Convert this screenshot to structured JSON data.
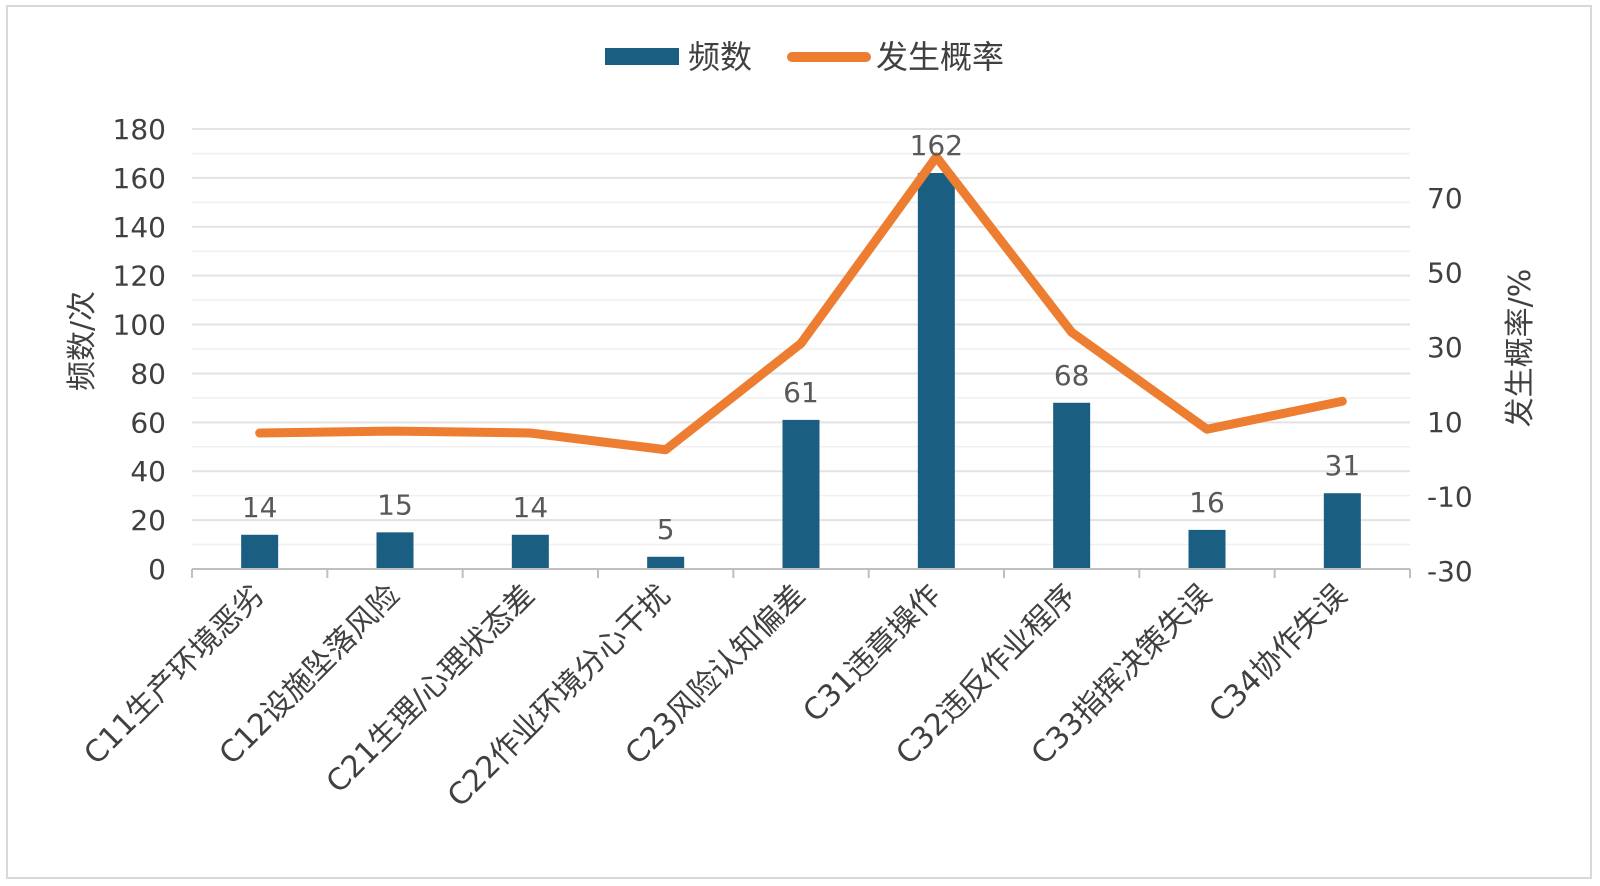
{
  "chart_data": {
    "type": "bar",
    "categories": [
      "C11生产环境恶劣",
      "C12设施坠落风险",
      "C21生理/心理状态差",
      "C22作业环境分心干扰",
      "C23风险认知偏差",
      "C31违章操作",
      "C32违反作业程序",
      "C33指挥决策失误",
      "C34协作失误"
    ],
    "series": [
      {
        "name": "频数",
        "type": "bar",
        "axis": "left",
        "color": "#1a5e82",
        "values": [
          14,
          15,
          14,
          5,
          61,
          162,
          68,
          16,
          31
        ]
      },
      {
        "name": "发生概率",
        "type": "line",
        "axis": "right",
        "color": "#ed7d31",
        "values": [
          7,
          7.5,
          7,
          2.5,
          31,
          81,
          34,
          8,
          15.5
        ]
      }
    ],
    "data_labels": [
      "14",
      "15",
      "14",
      "5",
      "61",
      "162",
      "68",
      "16",
      "31"
    ],
    "ylabel": "频数/次",
    "y2label": "发生概率/%",
    "ylim": [
      0,
      180
    ],
    "yticks": [
      0,
      20,
      40,
      60,
      80,
      100,
      120,
      140,
      160,
      180
    ],
    "y2lim": [
      -30,
      85
    ],
    "y2ticks": [
      -30,
      -10,
      10,
      30,
      50,
      70
    ],
    "grid": true,
    "legend": "top-center"
  }
}
